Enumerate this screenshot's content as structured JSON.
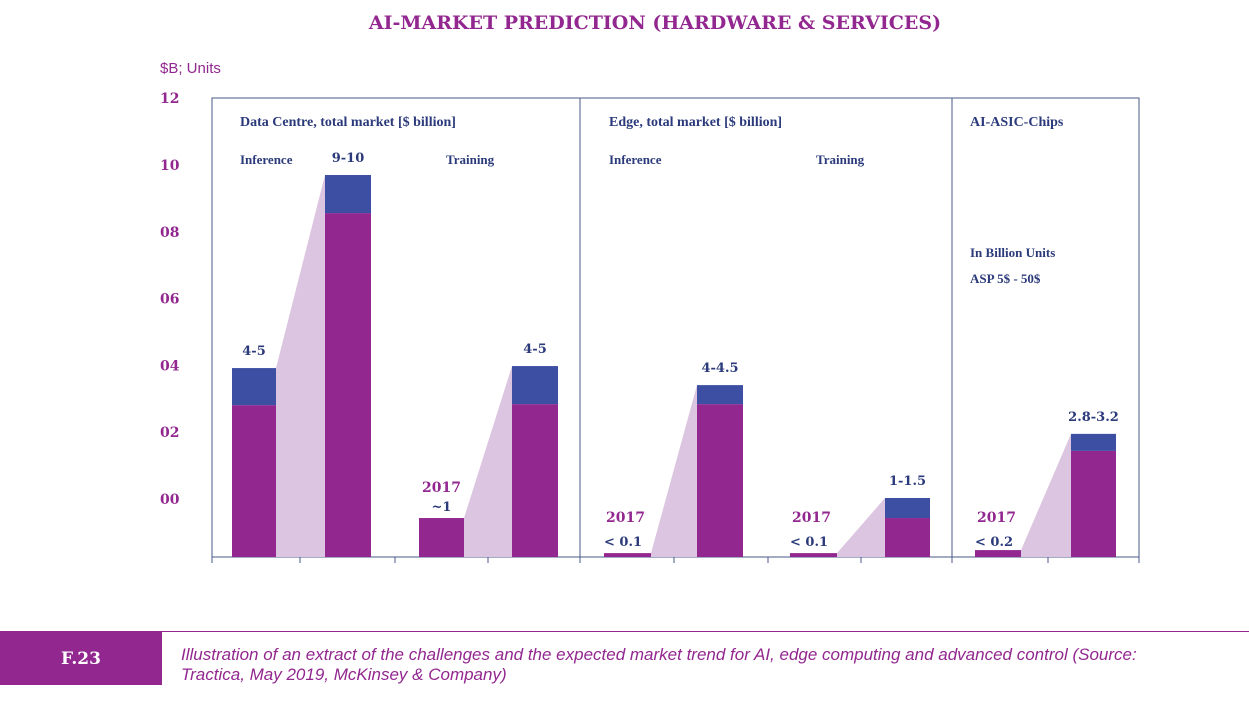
{
  "title": "AI-MARKET PREDICTION (HARDWARE & SERVICES)",
  "y_unit": "$B; Units",
  "figure": {
    "number": "F.23",
    "caption": "Illustration of an extract of the challenges and the expected market trend for AI, edge computing and advanced control (Source: Tractica, May 2019, McKinsey & Company)"
  },
  "colors": {
    "primary": "#92278f",
    "secondary": "#3c4fa3",
    "connector": "#dcc5e0",
    "label": "#2b3a7a"
  },
  "chart_data": {
    "type": "bar",
    "stacked": true,
    "y_tick_labels": [
      "12",
      "10",
      "08",
      "06",
      "04",
      "02",
      "00"
    ],
    "y_ticks": [
      12,
      10,
      8,
      6,
      4,
      2,
      0
    ],
    "ylim": [
      -1.74,
      12
    ],
    "grid": false,
    "panels": [
      {
        "title": "Data Centre, total market [$ billion]",
        "subtitles": [
          "Inference",
          "Training"
        ],
        "bars": [
          {
            "group": "Inference",
            "base": 2.81,
            "top": 3.92,
            "label": "4-5"
          },
          {
            "group": "Inference",
            "base": 8.56,
            "top": 9.7,
            "label": "9-10"
          },
          {
            "group": "Training",
            "base": -0.57,
            "top": -0.57,
            "label": "~1",
            "year": "2017"
          },
          {
            "group": "Training",
            "base": 2.84,
            "top": 3.98,
            "label": "4-5"
          }
        ]
      },
      {
        "title": "Edge, total market [$ billion]",
        "subtitles": [
          "Inference",
          "Training"
        ],
        "bars": [
          {
            "group": "Inference",
            "base": -1.62,
            "top": -1.62,
            "label": "< 0.1",
            "year": "2017"
          },
          {
            "group": "Inference",
            "base": 2.84,
            "top": 3.41,
            "label": "4-4.5"
          },
          {
            "group": "Training",
            "base": -1.62,
            "top": -1.62,
            "label": "< 0.1",
            "year": "2017"
          },
          {
            "group": "Training",
            "base": -0.57,
            "top": 0.03,
            "label": "1-1.5"
          }
        ]
      },
      {
        "title": "AI-ASIC-Chips",
        "subtitles": [],
        "notes": [
          "In Billion Units",
          "ASP 5$ - 50$"
        ],
        "bars": [
          {
            "group": "ASIC",
            "base": -1.53,
            "top": -1.53,
            "label": "< 0.2",
            "year": "2017"
          },
          {
            "group": "ASIC",
            "base": 1.44,
            "top": 1.95,
            "label": "2.8-3.2"
          }
        ]
      }
    ]
  }
}
